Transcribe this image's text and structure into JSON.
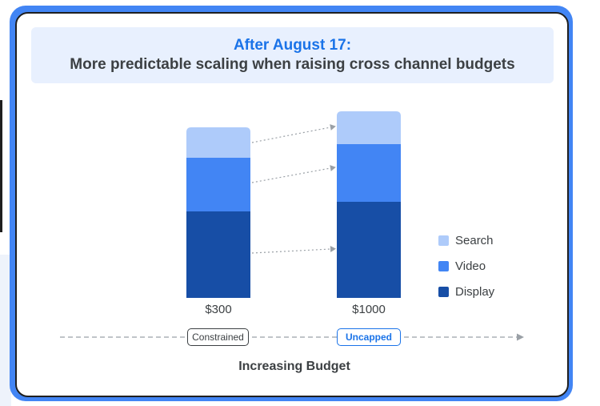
{
  "header": {
    "line1": "After August 17:",
    "line2": "More predictable scaling when raising cross channel budgets"
  },
  "axis": {
    "label": "Increasing Budget",
    "stages": [
      "Constrained",
      "Uncapped"
    ]
  },
  "colors": {
    "search": "#aecbfa",
    "video": "#4285f4",
    "display": "#174ea6",
    "accent": "#1a73e8",
    "frame": "#4285f4"
  },
  "chart_data": {
    "type": "bar",
    "stacked": true,
    "categories": [
      "$300",
      "$1000"
    ],
    "series": [
      {
        "name": "Display",
        "values": [
          108,
          120
        ]
      },
      {
        "name": "Video",
        "values": [
          67,
          72
        ]
      },
      {
        "name": "Search",
        "values": [
          38,
          41
        ]
      }
    ],
    "legend": [
      "Search",
      "Video",
      "Display"
    ],
    "legend_position": "right",
    "grid": false,
    "xlabel": "Increasing Budget",
    "ylabel": ""
  }
}
